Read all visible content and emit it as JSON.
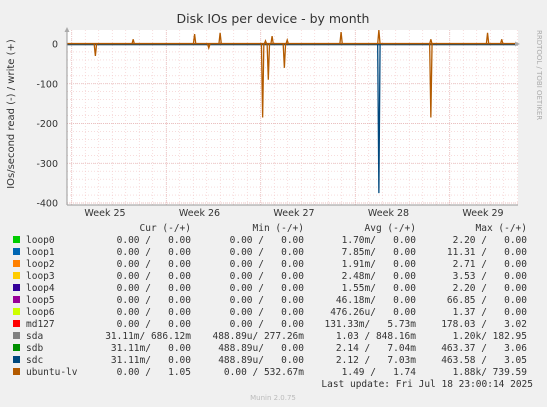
{
  "chart_data": {
    "type": "line",
    "title": "Disk IOs per device - by month",
    "ylabel": "IOs/second read (-) / write (+)",
    "ylim": [
      -400,
      0
    ],
    "yticks": [
      0,
      -100,
      -200,
      -300,
      -400
    ],
    "xticks": [
      "Week 25",
      "Week 26",
      "Week 27",
      "Week 28",
      "Week 29"
    ],
    "grid": true,
    "side_label": "RRDTOOL / TOBI OETIKER",
    "spikes": [
      {
        "series": "ubuntu-lv",
        "week": 24.75,
        "value": -30
      },
      {
        "series": "ubuntu-lv",
        "week": 25.15,
        "value": 12
      },
      {
        "series": "ubuntu-lv",
        "week": 25.8,
        "value": 25
      },
      {
        "series": "ubuntu-lv",
        "week": 25.95,
        "value": -10
      },
      {
        "series": "ubuntu-lv",
        "week": 26.07,
        "value": 28
      },
      {
        "series": "ubuntu-lv",
        "week": 26.55,
        "value": 8
      },
      {
        "series": "ubuntu-lv",
        "week": 26.52,
        "value": -185
      },
      {
        "series": "ubuntu-lv",
        "week": 26.58,
        "value": -90
      },
      {
        "series": "ubuntu-lv",
        "week": 26.62,
        "value": 20
      },
      {
        "series": "ubuntu-lv",
        "week": 26.75,
        "value": -60
      },
      {
        "series": "ubuntu-lv",
        "week": 26.78,
        "value": 10
      },
      {
        "series": "ubuntu-lv",
        "week": 27.35,
        "value": 30
      },
      {
        "series": "sdc",
        "week": 27.75,
        "value": -375
      },
      {
        "series": "ubuntu-lv",
        "week": 27.75,
        "value": 35
      },
      {
        "series": "ubuntu-lv",
        "week": 28.3,
        "value": -185
      },
      {
        "series": "ubuntu-lv",
        "week": 28.3,
        "value": 12
      },
      {
        "series": "ubuntu-lv",
        "week": 28.9,
        "value": 28
      },
      {
        "series": "ubuntu-lv",
        "week": 29.05,
        "value": 12
      }
    ],
    "legend_headers": {
      "cur": "Cur (-/+)",
      "min": "Min (-/+)",
      "avg": "Avg (-/+)",
      "max": "Max (-/+)"
    },
    "legend": [
      {
        "name": "loop0",
        "color": "#00cc00",
        "cur": "0.00 /   0.00",
        "min": "0.00 /   0.00",
        "avg": "1.70m/   0.00",
        "max": "2.20 /   0.00"
      },
      {
        "name": "loop1",
        "color": "#0066b3",
        "cur": "0.00 /   0.00",
        "min": "0.00 /   0.00",
        "avg": "7.85m/   0.00",
        "max": "11.31 /   0.00"
      },
      {
        "name": "loop2",
        "color": "#ff8000",
        "cur": "0.00 /   0.00",
        "min": "0.00 /   0.00",
        "avg": "1.91m/   0.00",
        "max": "2.71 /   0.00"
      },
      {
        "name": "loop3",
        "color": "#ffcc00",
        "cur": "0.00 /   0.00",
        "min": "0.00 /   0.00",
        "avg": "2.48m/   0.00",
        "max": "3.53 /   0.00"
      },
      {
        "name": "loop4",
        "color": "#330099",
        "cur": "0.00 /   0.00",
        "min": "0.00 /   0.00",
        "avg": "1.55m/   0.00",
        "max": "2.20 /   0.00"
      },
      {
        "name": "loop5",
        "color": "#990099",
        "cur": "0.00 /   0.00",
        "min": "0.00 /   0.00",
        "avg": "46.18m/   0.00",
        "max": "66.85 /   0.00"
      },
      {
        "name": "loop6",
        "color": "#ccff00",
        "cur": "0.00 /   0.00",
        "min": "0.00 /   0.00",
        "avg": "476.26u/   0.00",
        "max": "1.37 /   0.00"
      },
      {
        "name": "md127",
        "color": "#ff0000",
        "cur": "0.00 /   0.00",
        "min": "0.00 /   0.00",
        "avg": "131.33m/   5.73m",
        "max": "178.03 /   3.02"
      },
      {
        "name": "sda",
        "color": "#808080",
        "cur": "31.11m/ 686.12m",
        "min": "488.89u/ 277.26m",
        "avg": "1.03 / 848.16m",
        "max": "1.20k/ 182.95"
      },
      {
        "name": "sdb",
        "color": "#008f00",
        "cur": "31.11m/   0.00",
        "min": "488.89u/   0.00",
        "avg": "2.14 /   7.04m",
        "max": "463.37 /   3.06"
      },
      {
        "name": "sdc",
        "color": "#00487d",
        "cur": "31.11m/   0.00",
        "min": "488.89u/   0.00",
        "avg": "2.12 /   7.03m",
        "max": "463.58 /   3.05"
      },
      {
        "name": "ubuntu-lv",
        "color": "#b35a00",
        "cur": "0.00 /   1.05",
        "min": "0.00 / 532.67m",
        "avg": "1.49 /   1.74",
        "max": "1.88k/ 739.59"
      }
    ],
    "last_update": "Last update: Fri Jul 18 23:00:14 2025",
    "footer": "Munin 2.0.75"
  }
}
